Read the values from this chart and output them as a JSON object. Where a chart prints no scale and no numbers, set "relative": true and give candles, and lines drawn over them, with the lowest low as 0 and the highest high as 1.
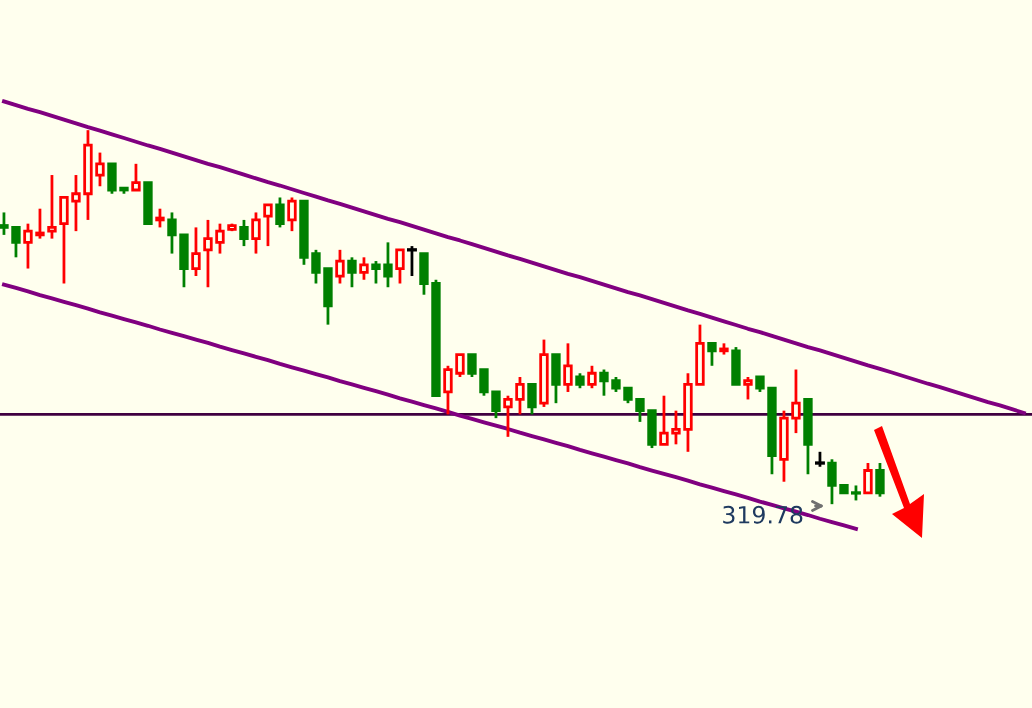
{
  "chart_data": {
    "type": "candlestick",
    "relative": true,
    "categories": [
      null,
      null,
      null,
      null,
      null,
      null,
      null,
      null,
      null,
      null,
      null,
      null,
      null,
      null,
      null,
      null,
      null,
      null,
      null,
      null,
      null,
      null,
      null,
      null,
      null,
      null,
      null,
      null,
      null,
      null,
      null,
      null,
      null,
      null,
      null,
      null,
      null,
      null,
      null,
      null,
      null,
      null,
      null,
      null,
      null,
      null,
      null,
      null,
      null,
      null,
      null,
      null,
      null,
      null,
      null,
      null,
      null,
      null,
      null,
      null,
      null,
      null,
      null,
      null,
      null,
      null,
      null,
      null,
      null,
      null,
      null,
      null,
      null,
      null,
      null,
      null,
      null,
      null,
      null,
      null,
      null,
      null,
      null,
      null,
      null,
      null
    ],
    "ohlc": [
      [
        0.745,
        0.78,
        0.72,
        0.74
      ],
      [
        0.74,
        0.74,
        0.66,
        0.7
      ],
      [
        0.7,
        0.75,
        0.63,
        0.73
      ],
      [
        0.72,
        0.79,
        0.71,
        0.725
      ],
      [
        0.73,
        0.88,
        0.71,
        0.74
      ],
      [
        0.75,
        0.82,
        0.59,
        0.82
      ],
      [
        0.81,
        0.88,
        0.73,
        0.83
      ],
      [
        0.83,
        1.0,
        0.76,
        0.96
      ],
      [
        0.88,
        0.94,
        0.85,
        0.91
      ],
      [
        0.91,
        0.91,
        0.83,
        0.84
      ],
      [
        0.845,
        0.845,
        0.83,
        0.84
      ],
      [
        0.84,
        0.91,
        0.84,
        0.86
      ],
      [
        0.86,
        0.86,
        0.75,
        0.75
      ],
      [
        0.76,
        0.79,
        0.74,
        0.765
      ],
      [
        0.76,
        0.78,
        0.67,
        0.72
      ],
      [
        0.72,
        0.72,
        0.58,
        0.63
      ],
      [
        0.63,
        0.74,
        0.61,
        0.67
      ],
      [
        0.68,
        0.76,
        0.58,
        0.71
      ],
      [
        0.7,
        0.75,
        0.67,
        0.73
      ],
      [
        0.735,
        0.75,
        0.73,
        0.745
      ],
      [
        0.74,
        0.76,
        0.69,
        0.71
      ],
      [
        0.71,
        0.78,
        0.67,
        0.76
      ],
      [
        0.77,
        0.8,
        0.69,
        0.8
      ],
      [
        0.8,
        0.82,
        0.74,
        0.75
      ],
      [
        0.76,
        0.82,
        0.73,
        0.81
      ],
      [
        0.81,
        0.81,
        0.64,
        0.66
      ],
      [
        0.67,
        0.68,
        0.59,
        0.62
      ],
      [
        0.63,
        0.63,
        0.48,
        0.53
      ],
      [
        0.61,
        0.68,
        0.59,
        0.65
      ],
      [
        0.65,
        0.66,
        0.58,
        0.62
      ],
      [
        0.62,
        0.66,
        0.6,
        0.64
      ],
      [
        0.64,
        0.65,
        0.59,
        0.63
      ],
      [
        0.64,
        0.7,
        0.58,
        0.61
      ],
      [
        0.63,
        0.68,
        0.59,
        0.68
      ],
      [
        0.68,
        0.69,
        0.61,
        0.68
      ],
      [
        0.67,
        0.67,
        0.56,
        0.59
      ],
      [
        0.59,
        0.6,
        0.29,
        0.29
      ],
      [
        0.3,
        0.37,
        0.24,
        0.36
      ],
      [
        0.35,
        0.4,
        0.34,
        0.4
      ],
      [
        0.4,
        0.4,
        0.34,
        0.35
      ],
      [
        0.36,
        0.36,
        0.29,
        0.3
      ],
      [
        0.3,
        0.3,
        0.23,
        0.25
      ],
      [
        0.26,
        0.29,
        0.18,
        0.28
      ],
      [
        0.28,
        0.34,
        0.24,
        0.32
      ],
      [
        0.32,
        0.32,
        0.24,
        0.26
      ],
      [
        0.27,
        0.44,
        0.26,
        0.4
      ],
      [
        0.4,
        0.4,
        0.27,
        0.32
      ],
      [
        0.32,
        0.43,
        0.3,
        0.37
      ],
      [
        0.34,
        0.35,
        0.31,
        0.32
      ],
      [
        0.32,
        0.37,
        0.31,
        0.35
      ],
      [
        0.35,
        0.36,
        0.29,
        0.33
      ],
      [
        0.33,
        0.34,
        0.3,
        0.31
      ],
      [
        0.31,
        0.31,
        0.27,
        0.28
      ],
      [
        0.28,
        0.28,
        0.22,
        0.25
      ],
      [
        0.25,
        0.25,
        0.15,
        0.16
      ],
      [
        0.16,
        0.29,
        0.16,
        0.19
      ],
      [
        0.19,
        0.25,
        0.16,
        0.2
      ],
      [
        0.2,
        0.35,
        0.14,
        0.32
      ],
      [
        0.32,
        0.48,
        0.32,
        0.43
      ],
      [
        0.43,
        0.43,
        0.37,
        0.41
      ],
      [
        0.41,
        0.43,
        0.4,
        0.415
      ],
      [
        0.41,
        0.42,
        0.32,
        0.32
      ],
      [
        0.32,
        0.34,
        0.28,
        0.33
      ],
      [
        0.34,
        0.34,
        0.3,
        0.31
      ],
      [
        0.31,
        0.31,
        0.08,
        0.13
      ],
      [
        0.12,
        0.25,
        0.06,
        0.23
      ],
      [
        0.23,
        0.36,
        0.19,
        0.27
      ],
      [
        0.28,
        0.28,
        0.08,
        0.16
      ],
      [
        0.11,
        0.14,
        0.1,
        0.11
      ],
      [
        0.11,
        0.12,
        0.0,
        0.05
      ],
      [
        0.05,
        0.05,
        0.03,
        0.03
      ],
      [
        0.03,
        0.05,
        0.01,
        0.03
      ],
      [
        0.03,
        0.11,
        0.03,
        0.09
      ],
      [
        0.09,
        0.11,
        0.02,
        0.03
      ],
      null,
      null,
      null,
      null,
      null,
      null,
      null,
      null,
      null,
      null,
      null,
      null
    ],
    "colors": [
      "#008000",
      "#008000",
      "#ff0000",
      "#ff0000",
      "#ff0000",
      "#ff0000",
      "#ff0000",
      "#ff0000",
      "#ff0000",
      "#008000",
      "#008000",
      "#ff0000",
      "#008000",
      "#ff0000",
      "#008000",
      "#008000",
      "#ff0000",
      "#ff0000",
      "#ff0000",
      "#ff0000",
      "#008000",
      "#ff0000",
      "#ff0000",
      "#008000",
      "#ff0000",
      "#008000",
      "#008000",
      "#008000",
      "#ff0000",
      "#008000",
      "#ff0000",
      "#008000",
      "#008000",
      "#ff0000",
      "#000000",
      "#008000",
      "#008000",
      "#ff0000",
      "#ff0000",
      "#008000",
      "#008000",
      "#008000",
      "#ff0000",
      "#ff0000",
      "#008000",
      "#ff0000",
      "#008000",
      "#ff0000",
      "#008000",
      "#ff0000",
      "#008000",
      "#008000",
      "#008000",
      "#008000",
      "#008000",
      "#ff0000",
      "#ff0000",
      "#ff0000",
      "#ff0000",
      "#008000",
      "#ff0000",
      "#008000",
      "#ff0000",
      "#008000",
      "#008000",
      "#ff0000",
      "#ff0000",
      "#008000",
      "#000000",
      "#008000",
      "#008000",
      "#008000",
      "#ff0000",
      "#008000",
      null,
      null,
      null,
      null,
      null,
      null,
      null,
      null,
      null,
      null,
      null,
      null
    ],
    "series": [
      {
        "type": "line",
        "color": "#800080",
        "values": [
          1.077,
          1.067,
          1.057,
          1.048,
          1.038,
          1.028,
          1.018,
          1.008,
          0.999,
          0.989,
          0.979,
          0.969,
          0.959,
          0.95,
          0.94,
          0.93,
          0.92,
          0.91,
          0.901,
          0.891,
          0.881,
          0.871,
          0.861,
          0.852,
          0.842,
          0.832,
          0.822,
          0.812,
          0.803,
          0.793,
          0.783,
          0.773,
          0.763,
          0.754,
          0.744,
          0.734,
          0.724,
          0.714,
          0.705,
          0.695,
          0.685,
          0.675,
          0.665,
          0.656,
          0.646,
          0.636,
          0.626,
          0.616,
          0.607,
          0.597,
          0.587,
          0.577,
          0.567,
          0.558,
          0.548,
          0.538,
          0.528,
          0.518,
          0.509,
          0.499,
          0.489,
          0.479,
          0.469,
          0.46,
          0.45,
          0.44,
          0.43,
          0.42,
          0.411,
          0.401,
          0.391,
          0.381,
          0.371,
          0.362,
          0.352,
          0.342,
          0.332,
          0.322,
          0.313,
          0.303,
          0.293,
          0.283,
          0.273,
          0.264,
          0.254,
          0.244
        ]
      },
      {
        "type": "line",
        "color": "#800080",
        "values": [
          0.587,
          0.578,
          0.569,
          0.559,
          0.55,
          0.541,
          0.532,
          0.523,
          0.513,
          0.504,
          0.495,
          0.486,
          0.477,
          0.467,
          0.458,
          0.449,
          0.44,
          0.431,
          0.421,
          0.412,
          0.403,
          0.394,
          0.385,
          0.375,
          0.366,
          0.357,
          0.348,
          0.339,
          0.329,
          0.32,
          0.311,
          0.302,
          0.293,
          0.283,
          0.274,
          0.265,
          0.256,
          0.247,
          0.237,
          0.228,
          0.219,
          0.21,
          0.201,
          0.191,
          0.182,
          0.173,
          0.164,
          0.155,
          0.145,
          0.136,
          0.127,
          0.118,
          0.109,
          0.099,
          0.09,
          0.081,
          0.072,
          0.063,
          0.053,
          0.044,
          0.035,
          0.026,
          0.017,
          0.007,
          -0.002,
          -0.011,
          -0.02,
          -0.029,
          -0.039,
          -0.048,
          -0.057,
          -0.066,
          null,
          null,
          null,
          null,
          null,
          null,
          null,
          null,
          null,
          null,
          null,
          null,
          null,
          null
        ]
      }
    ],
    "ref_lines": [
      {
        "axis": "y",
        "value": 0.24,
        "color": "#400040"
      }
    ],
    "annotations": [
      "319.78"
    ]
  }
}
